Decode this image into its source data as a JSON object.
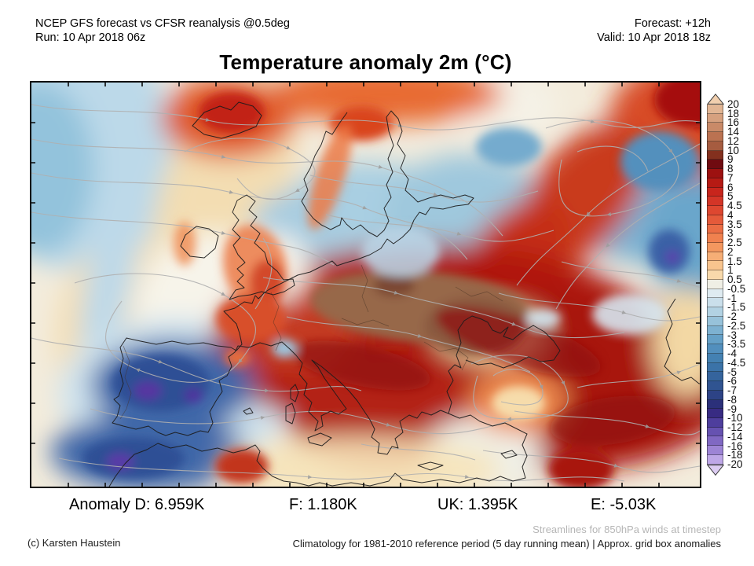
{
  "header": {
    "left_line1": "NCEP GFS forecast vs CFSR reanalysis @0.5deg",
    "left_line2": "Run: 10 Apr 2018 06z",
    "right_line1": "Forecast: +12h",
    "right_line2": "Valid: 10 Apr 2018 18z"
  },
  "title": "Temperature anomaly 2m (°C)",
  "colorbar": {
    "boundary_labels": [
      "20",
      "18",
      "16",
      "14",
      "12",
      "10",
      "9",
      "8",
      "7",
      "6",
      "5",
      "4.5",
      "4",
      "3.5",
      "3",
      "2.5",
      "2",
      "1.5",
      "1",
      "0.5",
      "-0.5",
      "-1",
      "-1.5",
      "-2",
      "-2.5",
      "-3",
      "-3.5",
      "-4",
      "-4.5",
      "-5",
      "-6",
      "-7",
      "-8",
      "-9",
      "-10",
      "-12",
      "-14",
      "-16",
      "-18",
      "-20"
    ],
    "box_colors": [
      "#e2b694",
      "#d6a17f",
      "#c98a68",
      "#bb7251",
      "#a65c40",
      "#83301e",
      "#700b10",
      "#9d1110",
      "#b61a14",
      "#c8251c",
      "#d43527",
      "#de4730",
      "#e55a3a",
      "#eb6d44",
      "#f0814f",
      "#f3975f",
      "#f6ae76",
      "#f8c48e",
      "#f8d9ab",
      "#f0efe5",
      "#dfebf1",
      "#cadfeb",
      "#b2d2e3",
      "#97c2da",
      "#7db1d1",
      "#65a0c7",
      "#528fbd",
      "#4481b2",
      "#3b73a8",
      "#35649d",
      "#305491",
      "#2d4386",
      "#2b307a",
      "#382b83",
      "#4e3e9d",
      "#6652b1",
      "#8068c3",
      "#9d84d5",
      "#bea7e7"
    ],
    "arrow_top_color": "#f1cfae",
    "arrow_bottom_color": "#dcccf2"
  },
  "footer": {
    "anomalies": [
      {
        "label": "Anomaly D:",
        "value": "6.959K"
      },
      {
        "label": "F:",
        "value": "1.180K"
      },
      {
        "label": "UK:",
        "value": "1.395K"
      },
      {
        "label": "E:",
        "value": "-5.03K"
      }
    ],
    "streamline_note": "Streamlines for 850hPa winds at timestep",
    "credit": "(c) Karsten Haustein",
    "climatology_note": "Climatology for 1981-2010 reference period (5 day running mean) | Approx. grid box anomalies"
  }
}
